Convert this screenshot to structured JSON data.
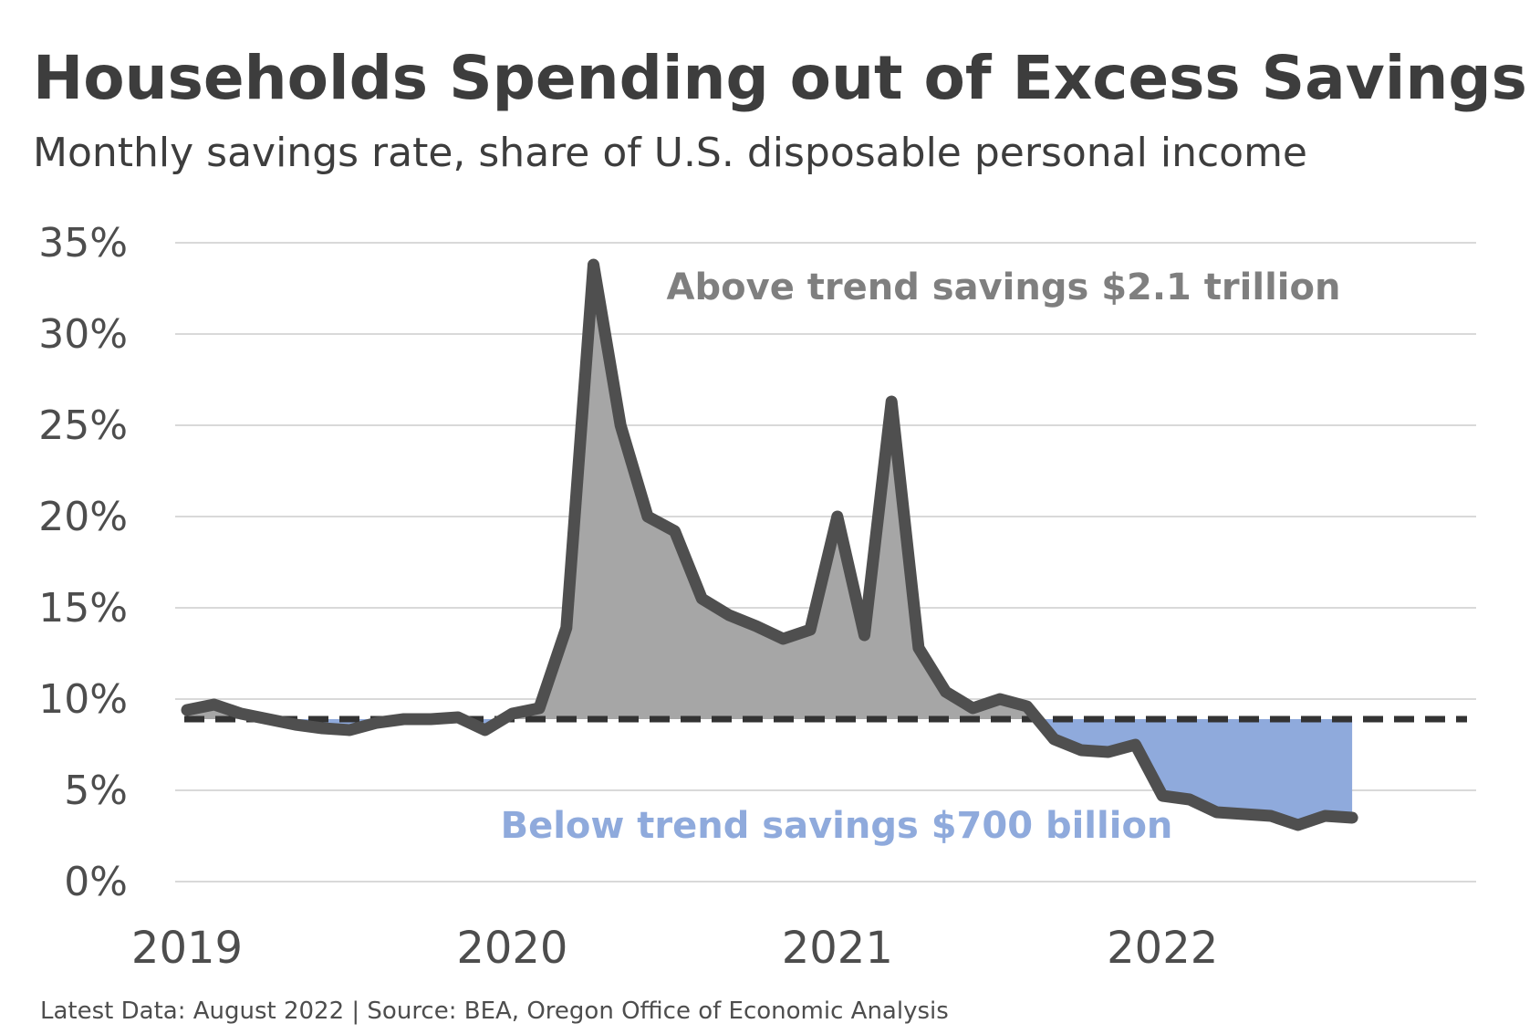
{
  "chart_data": {
    "type": "line",
    "title": "Households Spending out of Excess Savings",
    "subtitle": "Monthly savings rate, share of U.S. disposable personal income",
    "source": "Latest Data: August 2022 | Source: BEA, Oregon Office of Economic Analysis",
    "annotations": {
      "above": "Above trend savings $2.1 trillion",
      "below": "Below trend savings $700 billion"
    },
    "y_ticks": [
      "0%",
      "5%",
      "10%",
      "15%",
      "20%",
      "25%",
      "30%",
      "35%"
    ],
    "x_ticks": [
      "2019",
      "2020",
      "2021",
      "2022"
    ],
    "ylim": [
      0,
      35
    ],
    "grid": true,
    "colors": {
      "line": "#4f4f4f",
      "above_fill": "#a6a6a6",
      "below_fill": "#8faadc",
      "above_text": "#7f7f7f",
      "below_text": "#8faadc",
      "grid": "#d9d9d9"
    },
    "trend": 8.9,
    "series": [
      {
        "x": [
          "2019-01",
          "2019-02",
          "2019-03",
          "2019-04",
          "2019-05",
          "2019-06",
          "2019-07",
          "2019-08",
          "2019-09",
          "2019-10",
          "2019-11",
          "2019-12",
          "2020-01",
          "2020-02",
          "2020-03",
          "2020-04",
          "2020-05",
          "2020-06",
          "2020-07",
          "2020-08",
          "2020-09",
          "2020-10",
          "2020-11",
          "2020-12",
          "2021-01",
          "2021-02",
          "2021-03",
          "2021-04",
          "2021-05",
          "2021-06",
          "2021-07",
          "2021-08",
          "2021-09",
          "2021-10",
          "2021-11",
          "2021-12",
          "2022-01",
          "2022-02",
          "2022-03",
          "2022-04",
          "2022-05",
          "2022-06",
          "2022-07",
          "2022-08"
        ],
        "values": [
          9.4,
          9.7,
          9.2,
          8.9,
          8.6,
          8.4,
          8.3,
          8.7,
          8.9,
          8.9,
          9.0,
          8.3,
          9.2,
          9.5,
          13.9,
          33.8,
          25.0,
          20.0,
          19.2,
          15.5,
          14.6,
          14.0,
          13.3,
          13.8,
          20.0,
          13.5,
          26.3,
          12.8,
          10.4,
          9.5,
          10.0,
          9.6,
          7.8,
          7.2,
          7.1,
          7.5,
          4.7,
          4.5,
          3.8,
          3.7,
          3.6,
          3.1,
          3.6,
          3.5
        ]
      }
    ]
  }
}
